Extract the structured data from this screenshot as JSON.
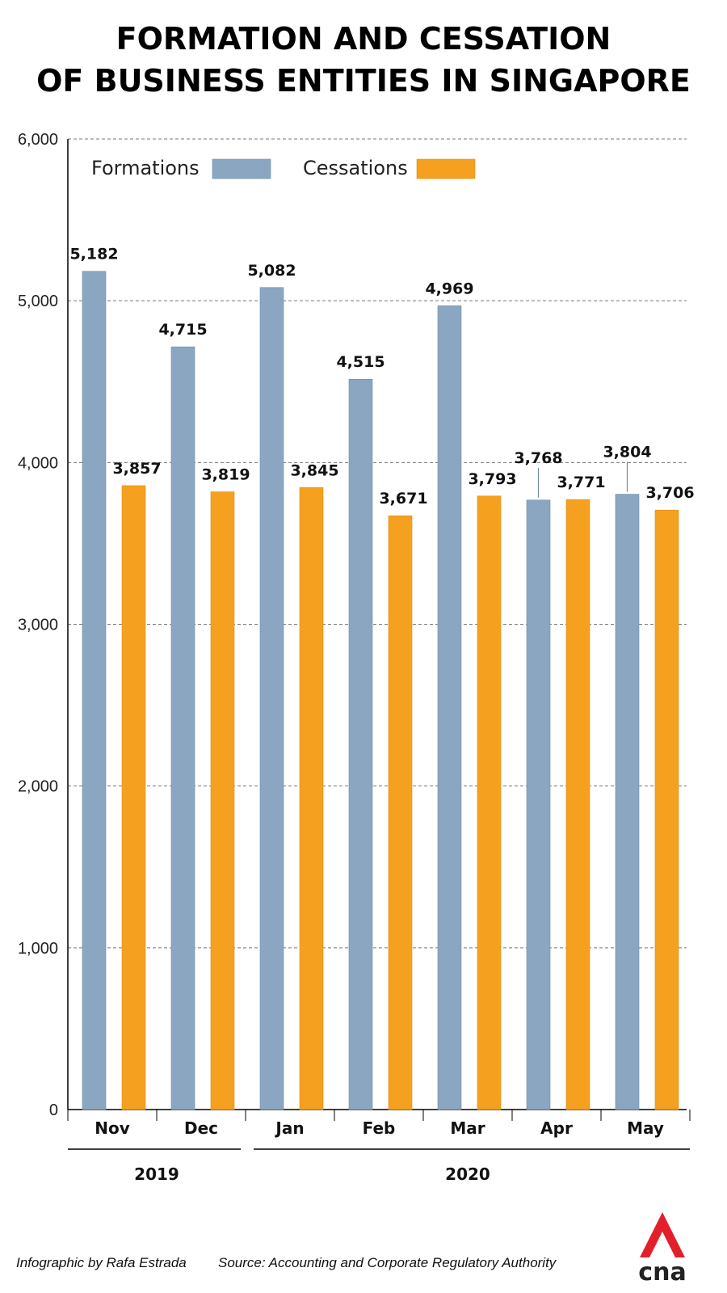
{
  "chart_data": {
    "type": "bar",
    "title_lines": [
      "FORMATION AND CESSATION",
      "OF BUSINESS ENTITIES IN SINGAPORE"
    ],
    "categories": [
      "Nov",
      "Dec",
      "Jan",
      "Feb",
      "Mar",
      "Apr",
      "May"
    ],
    "series": [
      {
        "name": "Formations",
        "color": "#8ba6c1",
        "values": [
          5182,
          4715,
          5082,
          4515,
          4969,
          3768,
          3804
        ]
      },
      {
        "name": "Cessations",
        "color": "#f5a01e",
        "values": [
          3857,
          3819,
          3845,
          3671,
          3793,
          3771,
          3706
        ]
      }
    ],
    "value_labels": {
      "Formations": [
        "5,182",
        "4,715",
        "5,082",
        "4,515",
        "4,969",
        "3,768",
        "3,804"
      ],
      "Cessations": [
        "3,857",
        "3,819",
        "3,845",
        "3,671",
        "3,793",
        "3,771",
        "3,706"
      ]
    },
    "ylim": [
      0,
      6000
    ],
    "yticks": [
      0,
      1000,
      2000,
      3000,
      4000,
      5000,
      6000
    ],
    "ytick_labels": [
      "0",
      "1,000",
      "2,000",
      "3,000",
      "4,000",
      "5,000",
      "6,000"
    ],
    "year_groups": [
      {
        "label": "2019",
        "from": 0,
        "to": 1
      },
      {
        "label": "2020",
        "from": 2,
        "to": 6
      }
    ],
    "grid": true,
    "legend_position": "top-left"
  },
  "footer": {
    "credit": "Infographic by Rafa Estrada",
    "source": "Source: Accounting and Corporate Regulatory Authority"
  },
  "logo": {
    "text": "cna",
    "accent_color": "#e2202b"
  }
}
